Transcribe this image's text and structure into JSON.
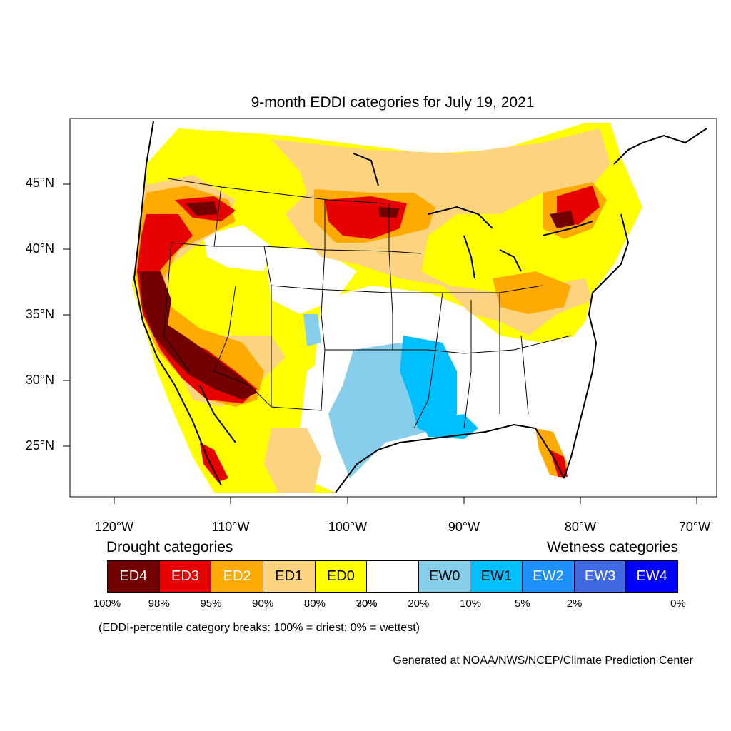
{
  "title": "9-month EDDI categories for July 19, 2021",
  "lat_labels": [
    "45°N",
    "40°N",
    "35°N",
    "30°N",
    "25°N"
  ],
  "lon_labels": [
    "120°W",
    "110°W",
    "100°W",
    "90°W",
    "80°W",
    "70°W"
  ],
  "legend": {
    "drought_heading": "Drought categories",
    "wetness_heading": "Wetness categories",
    "categories": [
      {
        "label": "ED4",
        "color": "#730000",
        "text_color": "#ffffff"
      },
      {
        "label": "ED3",
        "color": "#e60000",
        "text_color": "#ffffff"
      },
      {
        "label": "ED2",
        "color": "#ffaa00",
        "text_color": "#ffffff"
      },
      {
        "label": "ED1",
        "color": "#fcd37f",
        "text_color": "#000000"
      },
      {
        "label": "ED0",
        "color": "#ffff00",
        "text_color": "#000000"
      },
      {
        "label": "",
        "color": "#ffffff",
        "text_color": "#000000"
      },
      {
        "label": "EW0",
        "color": "#87ceeb",
        "text_color": "#000000"
      },
      {
        "label": "EW1",
        "color": "#00bfff",
        "text_color": "#000000"
      },
      {
        "label": "EW2",
        "color": "#1e90ff",
        "text_color": "#ffffff"
      },
      {
        "label": "EW3",
        "color": "#4169e1",
        "text_color": "#ffffff"
      },
      {
        "label": "EW4",
        "color": "#0000ff",
        "text_color": "#ffffff"
      }
    ],
    "breaks": [
      "100%",
      "98%",
      "95%",
      "90%",
      "80%",
      "70%",
      "30%",
      "20%",
      "10%",
      "5%",
      "2%",
      "0%"
    ]
  },
  "note": "(EDDI-percentile category breaks: 100% = driest; 0% = wettest)",
  "credit": "Generated at NOAA/NWS/NCEP/Climate Prediction Center"
}
